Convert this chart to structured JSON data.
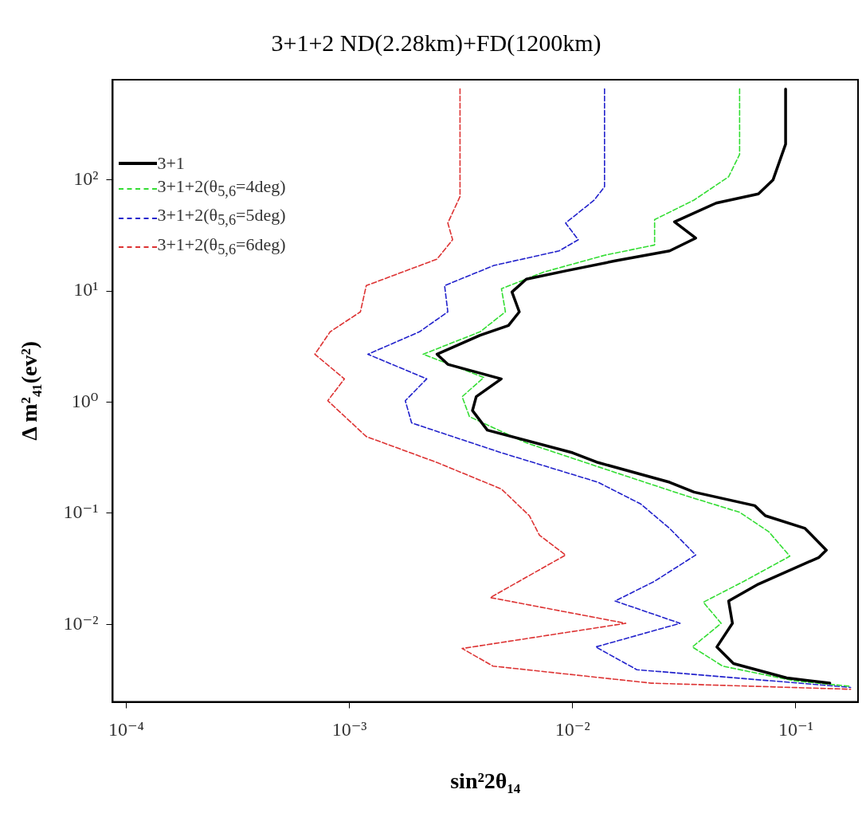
{
  "chart_data": {
    "type": "line",
    "title": "3+1+2 ND(2.28km)+FD(1200km)",
    "xlabel": "sin²2θ₁₄",
    "ylabel": "Δ m²₄₁(ev²)",
    "log": "xy",
    "grid": false,
    "legend": "top left",
    "marker": "none",
    "xlim": [
      8.7e-05,
      0.19
    ],
    "ylim": [
      0.002,
      800
    ],
    "xticks": [
      {
        "value": 0.0001,
        "label": "10⁻⁴"
      },
      {
        "value": 0.001,
        "label": "10⁻³"
      },
      {
        "value": 0.01,
        "label": "10⁻²"
      },
      {
        "value": 0.1,
        "label": "10⁻¹"
      }
    ],
    "yticks": [
      {
        "value": 0.01,
        "label": "10⁻²"
      },
      {
        "value": 0.1,
        "label": "10⁻¹"
      },
      {
        "value": 1,
        "label": "10⁰"
      },
      {
        "value": 10,
        "label": "10¹"
      },
      {
        "value": 100,
        "label": "10²"
      }
    ],
    "series": [
      {
        "name": "3+1",
        "color": "#000000",
        "line_style": "solid",
        "x": [
          0.09,
          0.09,
          0.079,
          0.068,
          0.044,
          0.0286,
          0.0356,
          0.0272,
          0.0155,
          0.0093,
          0.0062,
          0.00535,
          0.00577,
          0.00516,
          0.00385,
          0.00247,
          0.00276,
          0.00479,
          0.0037,
          0.00356,
          0.00415,
          0.01,
          0.013,
          0.0272,
          0.035,
          0.0655,
          0.073,
          0.11,
          0.137,
          0.127,
          0.068,
          0.05,
          0.052,
          0.0443,
          0.0526,
          0.091,
          0.142
        ],
        "values": [
          660,
          210,
          100,
          75,
          62,
          42,
          30,
          23,
          18.7,
          15.2,
          12.8,
          9.8,
          6.5,
          4.9,
          4.0,
          2.7,
          2.19,
          1.62,
          1.12,
          0.84,
          0.56,
          0.35,
          0.286,
          0.19,
          0.155,
          0.117,
          0.095,
          0.073,
          0.0465,
          0.04,
          0.023,
          0.0162,
          0.0102,
          0.00625,
          0.00443,
          0.00329,
          0.00295
        ]
      },
      {
        "name": "3+1+2(θ$_{5,6}$=4deg)",
        "color": "#33dd33",
        "line_style": "dashed",
        "x": [
          0.056,
          0.056,
          0.05,
          0.035,
          0.0233,
          0.0233,
          0.0139,
          0.0074,
          0.0048,
          0.005,
          0.00385,
          0.00214,
          0.004,
          0.0032,
          0.00345,
          0.0062,
          0.0155,
          0.0324,
          0.056,
          0.0757,
          0.094,
          0.0586,
          0.0385,
          0.0463,
          0.0344,
          0.047,
          0.098,
          0.176
        ],
        "values": [
          660,
          170,
          107,
          66,
          44,
          26,
          21,
          14.8,
          10.5,
          6.5,
          4.3,
          2.7,
          1.67,
          1.12,
          0.74,
          0.43,
          0.233,
          0.143,
          0.102,
          0.068,
          0.041,
          0.0244,
          0.0158,
          0.0102,
          0.00625,
          0.0042,
          0.0031,
          0.00276
        ]
      },
      {
        "name": "3+1+2(θ$_{5,6}$=5deg)",
        "color": "#2222cc",
        "line_style": "dashed",
        "x": [
          0.0139,
          0.0139,
          0.0125,
          0.0093,
          0.0106,
          0.0087,
          0.00444,
          0.00267,
          0.00276,
          0.00206,
          0.00121,
          0.00222,
          0.00178,
          0.0019,
          0.0048,
          0.013,
          0.0202,
          0.0272,
          0.0356,
          0.0233,
          0.0155,
          0.0303,
          0.0127,
          0.0194,
          0.176
        ],
        "values": [
          660,
          87,
          66,
          41,
          29,
          23,
          17,
          11.2,
          6.5,
          4.3,
          2.7,
          1.62,
          1.03,
          0.65,
          0.35,
          0.19,
          0.121,
          0.073,
          0.042,
          0.0244,
          0.0162,
          0.0102,
          0.00625,
          0.0039,
          0.0027
        ]
      },
      {
        "name": "3+1+2(θ$_{5,6}$=6deg)",
        "color": "#dd3333",
        "line_style": "dashed",
        "x": [
          0.00313,
          0.00313,
          0.00276,
          0.0029,
          0.00247,
          0.00119,
          0.00112,
          0.00082,
          0.0007,
          0.00095,
          0.0008,
          0.00119,
          0.00247,
          0.0048,
          0.0064,
          0.0071,
          0.0093,
          0.00428,
          0.0173,
          0.0032,
          0.0044,
          0.0225,
          0.176
        ],
        "values": [
          660,
          71,
          41,
          29,
          19.4,
          11.2,
          6.5,
          4.3,
          2.7,
          1.62,
          1.03,
          0.49,
          0.286,
          0.165,
          0.095,
          0.0635,
          0.042,
          0.0174,
          0.0102,
          0.00605,
          0.0042,
          0.00295,
          0.0026
        ]
      }
    ]
  }
}
